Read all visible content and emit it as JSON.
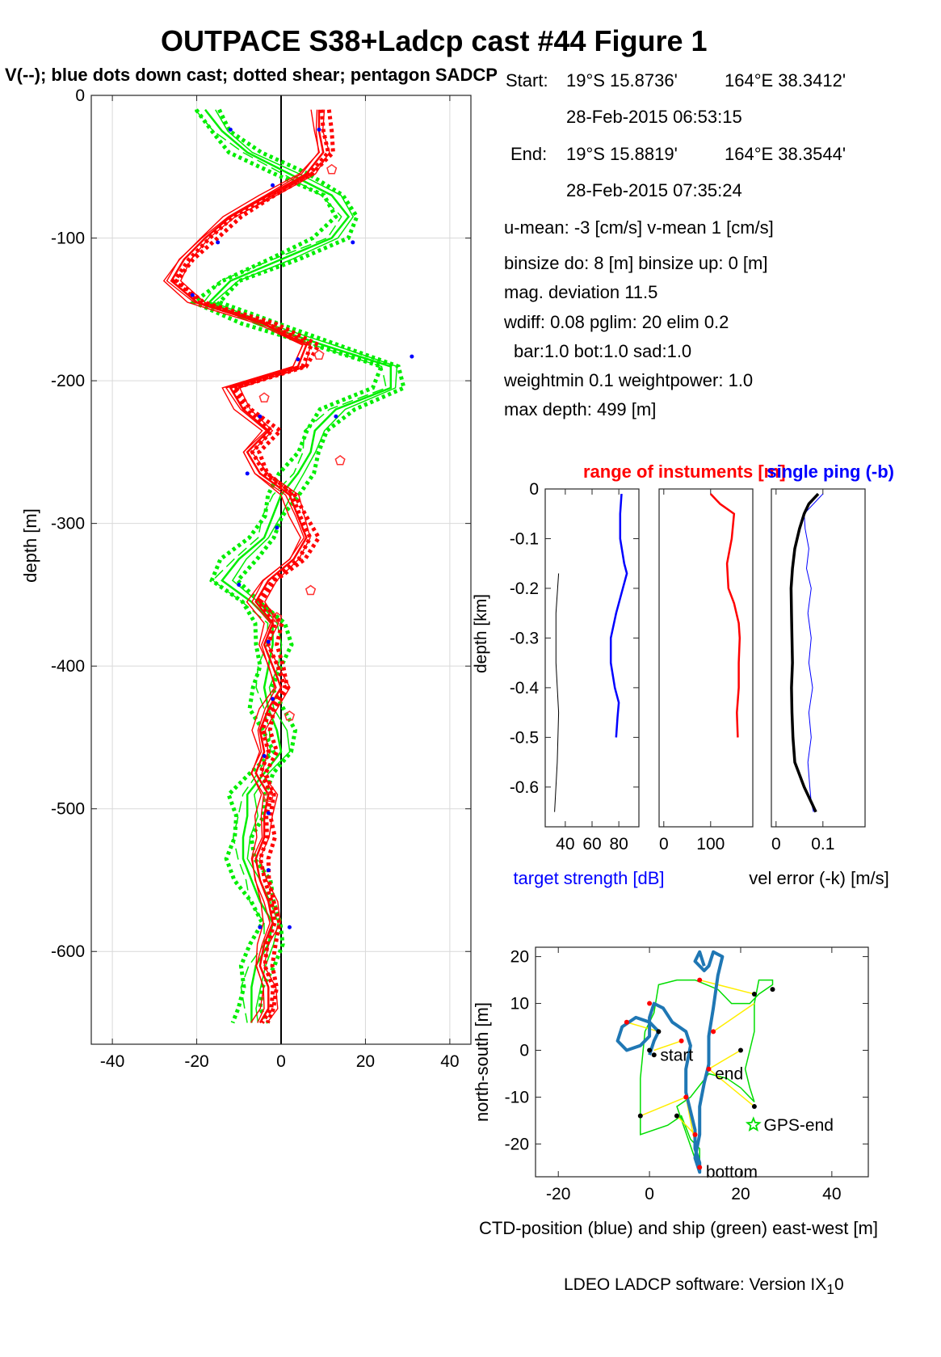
{
  "figure": {
    "title": "OUTPACE S38+Ladcp cast #44  Figure 1",
    "subtitle": "V(--); blue dots down cast; dotted shear; pentagon SADCP",
    "footer": "LDEO LADCP software: Version IX",
    "footer_sub": "1",
    "footer_tail": "0"
  },
  "info": {
    "start_label": "Start:",
    "start_lat": "19°S 15.8736'",
    "start_lon": "164°E 38.3412'",
    "start_time": "28-Feb-2015 06:53:15",
    "end_label": "End:",
    "end_lat": "19°S 15.8819'",
    "end_lon": "164°E 38.3544'",
    "end_time": "28-Feb-2015 07:35:24",
    "mean": "u-mean:  -3 [cm/s]     v-mean   1 [cm/s]",
    "binsize": "binsize do: 8 [m]  binsize up:  0 [m]",
    "magdev": "mag. deviation 11.5",
    "wdiff": "wdiff: 0.08  pglim: 20  elim 0.2",
    "bar": "bar:1.0 bot:1.0 sad:1.0",
    "weight": "weightmin 0.1  weightpower: 1.0",
    "maxdepth": "max depth: 499 [m]"
  },
  "colors": {
    "v_profile": "#ff0000",
    "shear": "#00ee00",
    "down_dots": "#0000ff",
    "target_strength": "#0000ff",
    "range": "#ff0000",
    "ctd_track": "#1f77b4",
    "ship_track": "#00dd00",
    "links": "#ffee00"
  },
  "chart_data": [
    {
      "type": "line",
      "name": "velocity-profile",
      "ylabel": "depth [m]",
      "xlim": [
        -45,
        45
      ],
      "ylim": [
        -665,
        0
      ],
      "xticks": [
        -40,
        -20,
        0,
        20,
        40
      ],
      "yticks": [
        0,
        -100,
        -200,
        -300,
        -400,
        -500,
        -600
      ],
      "grid": true,
      "depth": [
        -10,
        -25,
        -40,
        -55,
        -70,
        -85,
        -100,
        -115,
        -130,
        -145,
        -160,
        -175,
        -190,
        -205,
        -220,
        -235,
        -250,
        -265,
        -280,
        -295,
        -310,
        -325,
        -340,
        -355,
        -370,
        -385,
        -400,
        -415,
        -430,
        -445,
        -460,
        -475,
        -490,
        -505,
        -520,
        -535,
        -550,
        -565,
        -580,
        -595,
        -610,
        -625,
        -640,
        -650
      ],
      "v_red": [
        9,
        9,
        10,
        6,
        -3,
        -12,
        -18,
        -23,
        -26,
        -20,
        -4,
        6,
        4,
        -12,
        -9,
        -3,
        -8,
        -5,
        2,
        4,
        6,
        3,
        -3,
        -6,
        -2,
        -4,
        -2,
        0,
        -3,
        -5,
        -4,
        -6,
        -3,
        -4,
        -4,
        -6,
        -5,
        -3,
        -2,
        -4,
        -5,
        -3,
        -3,
        -5
      ],
      "v_green": [
        -18,
        -14,
        -8,
        2,
        12,
        16,
        12,
        0,
        -12,
        -17,
        -5,
        10,
        26,
        26,
        13,
        8,
        7,
        4,
        0,
        -2,
        -4,
        -10,
        -14,
        -7,
        -2,
        -2,
        -3,
        -4,
        -3,
        -1,
        0,
        -4,
        -8,
        -8,
        -9,
        -9,
        -7,
        -5,
        -2,
        -3,
        -6,
        -7,
        -7,
        -7
      ],
      "down_dots": [
        [
          -12,
          -24
        ],
        [
          9,
          -24
        ],
        [
          -2,
          -63
        ],
        [
          -15,
          -103
        ],
        [
          17,
          -103
        ],
        [
          -21,
          -140
        ],
        [
          4,
          -185
        ],
        [
          31,
          -183
        ],
        [
          -5,
          -225
        ],
        [
          13,
          -225
        ],
        [
          -8,
          -265
        ],
        [
          -1,
          -303
        ],
        [
          -10,
          -343
        ],
        [
          -3,
          -383
        ],
        [
          -2,
          -423
        ],
        [
          -4,
          -463
        ],
        [
          -3,
          -503
        ],
        [
          -3,
          -543
        ],
        [
          -5,
          -583
        ],
        [
          2,
          -583
        ]
      ],
      "sadcp_pentagons": [
        [
          12,
          -52
        ],
        [
          9,
          -182
        ],
        [
          -4,
          -212
        ],
        [
          14,
          -256
        ],
        [
          7,
          -347
        ],
        [
          -1,
          -366
        ],
        [
          2,
          -435
        ],
        [
          -3,
          -492
        ]
      ]
    },
    {
      "type": "line",
      "name": "target-strength",
      "ylabel": "depth [km]",
      "xlabel": "target strength [dB]",
      "legend_label": "range of instuments [m]",
      "xlim": [
        25,
        95
      ],
      "ylim": [
        -0.68,
        0
      ],
      "xticks": [
        40,
        60,
        80
      ],
      "yticks": [
        0,
        -0.1,
        -0.2,
        -0.3,
        -0.4,
        -0.5,
        -0.6
      ],
      "depth": [
        -0.01,
        -0.05,
        -0.1,
        -0.15,
        -0.17,
        -0.2,
        -0.25,
        -0.3,
        -0.35,
        -0.4,
        -0.43,
        -0.46,
        -0.5
      ],
      "blue": [
        82,
        81,
        81,
        84,
        86,
        83,
        78,
        74,
        74,
        77,
        80,
        79,
        78
      ],
      "black_depth": [
        -0.17,
        -0.25,
        -0.35,
        -0.45,
        -0.55,
        -0.65
      ],
      "black": [
        35,
        33,
        33,
        35,
        34,
        32
      ]
    },
    {
      "type": "line",
      "name": "range",
      "xlim": [
        -10,
        190
      ],
      "ylim": [
        -0.68,
        0
      ],
      "xticks": [
        0,
        100
      ],
      "depth": [
        -0.01,
        -0.03,
        -0.05,
        -0.1,
        -0.15,
        -0.2,
        -0.23,
        -0.27,
        -0.3,
        -0.35,
        -0.4,
        -0.45,
        -0.5
      ],
      "values": [
        100,
        120,
        150,
        145,
        135,
        138,
        150,
        160,
        162,
        160,
        160,
        156,
        158
      ]
    },
    {
      "type": "line",
      "name": "vel-error",
      "xlabel": "vel error (-k) [m/s]",
      "legend_label": "single ping (-b)",
      "xlim": [
        -0.01,
        0.19
      ],
      "ylim": [
        -0.68,
        0
      ],
      "xticks": [
        0,
        0.1
      ],
      "depth": [
        -0.01,
        -0.03,
        -0.05,
        -0.08,
        -0.12,
        -0.16,
        -0.2,
        -0.25,
        -0.3,
        -0.35,
        -0.4,
        -0.45,
        -0.5,
        -0.55,
        -0.6,
        -0.63,
        -0.65
      ],
      "black": [
        0.09,
        0.07,
        0.06,
        0.05,
        0.04,
        0.035,
        0.032,
        0.033,
        0.034,
        0.035,
        0.033,
        0.034,
        0.036,
        0.04,
        0.06,
        0.075,
        0.085
      ],
      "blue": [
        0.1,
        0.08,
        0.06,
        0.062,
        0.07,
        0.065,
        0.075,
        0.068,
        0.075,
        0.07,
        0.078,
        0.07,
        0.075,
        0.068,
        0.072,
        0.075,
        0.08
      ]
    },
    {
      "type": "line",
      "name": "position",
      "xlabel": "CTD-position (blue) and ship (green) east-west [m]",
      "ylabel": "north-south [m]",
      "xlim": [
        -25,
        48
      ],
      "ylim": [
        -27,
        22
      ],
      "xticks": [
        -20,
        0,
        20,
        40
      ],
      "yticks": [
        20,
        10,
        0,
        -10,
        -20
      ],
      "labels": [
        {
          "text": "start",
          "x": 2,
          "y": -1
        },
        {
          "text": "end",
          "x": 14,
          "y": -5
        },
        {
          "text": "GPS-end",
          "x": 24,
          "y": -16
        },
        {
          "text": "bottom",
          "x": 12,
          "y": -26
        }
      ],
      "ctd_track": [
        [
          0,
          -1
        ],
        [
          1,
          2
        ],
        [
          2,
          4
        ],
        [
          0,
          6
        ],
        [
          -3,
          7
        ],
        [
          -6,
          5
        ],
        [
          -7,
          2
        ],
        [
          -5,
          0
        ],
        [
          -2,
          1
        ],
        [
          0,
          3
        ],
        [
          0,
          7
        ],
        [
          1,
          10
        ],
        [
          3,
          9
        ],
        [
          5,
          6
        ],
        [
          8,
          4
        ],
        [
          9,
          1
        ],
        [
          8,
          -4
        ],
        [
          8,
          -9
        ],
        [
          9,
          -13
        ],
        [
          10,
          -17
        ],
        [
          10,
          -21
        ],
        [
          11,
          -24
        ],
        [
          11,
          -26
        ],
        [
          10,
          -23
        ],
        [
          11,
          -18
        ],
        [
          11,
          -12
        ],
        [
          12,
          -7
        ],
        [
          13,
          -3
        ],
        [
          13,
          3
        ],
        [
          14,
          9
        ],
        [
          15,
          16
        ],
        [
          16,
          20
        ],
        [
          14,
          21
        ],
        [
          13,
          18
        ],
        [
          12,
          17
        ],
        [
          10,
          19
        ],
        [
          11,
          21
        ],
        [
          12,
          18
        ]
      ],
      "ship_track": [
        [
          11,
          -26
        ],
        [
          11,
          -21
        ],
        [
          9,
          -19
        ],
        [
          7,
          -14
        ],
        [
          4,
          -16
        ],
        [
          -2,
          -18
        ],
        [
          -2,
          -6
        ],
        [
          -1,
          4
        ],
        [
          1,
          8
        ],
        [
          2,
          14
        ],
        [
          6,
          15
        ],
        [
          10,
          15
        ],
        [
          15,
          13
        ],
        [
          18,
          10
        ],
        [
          22,
          10
        ],
        [
          24,
          12
        ],
        [
          27,
          14
        ],
        [
          27,
          15
        ],
        [
          24,
          15
        ],
        [
          23,
          10
        ],
        [
          23,
          4
        ],
        [
          22,
          0
        ],
        [
          21,
          -4
        ],
        [
          22,
          -8
        ],
        [
          23,
          -11
        ],
        [
          20,
          -8
        ],
        [
          17,
          -6
        ],
        [
          13,
          -5
        ],
        [
          9,
          -10
        ],
        [
          6,
          -12
        ],
        [
          11,
          -26
        ]
      ],
      "link_pairs": [
        [
          [
            11,
            15
          ],
          [
            23,
            12
          ]
        ],
        [
          [
            14,
            4
          ],
          [
            23,
            10
          ]
        ],
        [
          [
            7,
            2
          ],
          [
            1,
            0
          ]
        ],
        [
          [
            2,
            4
          ],
          [
            -5,
            6
          ]
        ],
        [
          [
            13,
            -4
          ],
          [
            23,
            -12
          ]
        ],
        [
          [
            8,
            -10
          ],
          [
            -2,
            -14
          ]
        ],
        [
          [
            10,
            -18
          ],
          [
            6,
            -14
          ]
        ],
        [
          [
            11,
            -25
          ],
          [
            8,
            -10
          ]
        ],
        [
          [
            20,
            0
          ],
          [
            13,
            -4
          ]
        ]
      ],
      "black_dots": [
        [
          23,
          12
        ],
        [
          27,
          13
        ],
        [
          2,
          4
        ],
        [
          0,
          0
        ],
        [
          20,
          0
        ],
        [
          23,
          -12
        ],
        [
          -2,
          -14
        ],
        [
          6,
          -14
        ],
        [
          1,
          -1
        ]
      ],
      "red_dots": [
        [
          11,
          15
        ],
        [
          14,
          4
        ],
        [
          7,
          2
        ],
        [
          0,
          10
        ],
        [
          -5,
          6
        ],
        [
          13,
          -4
        ],
        [
          8,
          -10
        ],
        [
          10,
          -18
        ],
        [
          11,
          -25
        ]
      ]
    }
  ]
}
